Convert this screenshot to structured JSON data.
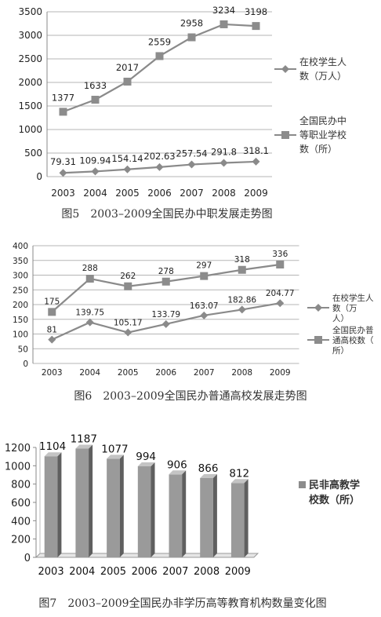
{
  "chart_data": [
    {
      "type": "line",
      "title": "",
      "x": [
        "2003",
        "2004",
        "2005",
        "2006",
        "2007",
        "2008",
        "2009"
      ],
      "ylim": [
        0,
        3500
      ],
      "yticks": [
        0,
        500,
        1000,
        1500,
        2000,
        2500,
        3000,
        3500
      ],
      "grid": true,
      "legend": "right",
      "series": [
        {
          "name": "在校学生人数（万人）",
          "marker": "diamond",
          "values": [
            79.31,
            109.94,
            154.14,
            202.63,
            257.54,
            291.8,
            318.1
          ],
          "labels": [
            "79.31",
            "109.94",
            "154.14",
            "202.63",
            "257.54",
            "291.8",
            "318.1"
          ]
        },
        {
          "name": "全国民办中等职业学校数（所）",
          "marker": "square",
          "values": [
            1377,
            1633,
            2017,
            2559,
            2958,
            3234,
            3198
          ],
          "labels": [
            "1377",
            "1633",
            "2017",
            "2559",
            "2958",
            "3234",
            "3198"
          ]
        }
      ],
      "caption": "图5　2003–2009全国民办中职发展走势图"
    },
    {
      "type": "line",
      "title": "",
      "x": [
        "2003",
        "2004",
        "2005",
        "2006",
        "2007",
        "2008",
        "2009"
      ],
      "ylim": [
        0,
        400
      ],
      "yticks": [
        0,
        50,
        100,
        150,
        200,
        250,
        300,
        350,
        400
      ],
      "grid": true,
      "legend": "right",
      "series": [
        {
          "name": "在校学生人数（万人）",
          "marker": "diamond",
          "values": [
            81,
            139.75,
            105.17,
            133.79,
            163.07,
            182.86,
            204.77
          ],
          "labels": [
            "81",
            "139.75",
            "105.17",
            "133.79",
            "163.07",
            "182.86",
            "204.77"
          ]
        },
        {
          "name": "全国民办普通高校数（所）",
          "marker": "square",
          "values": [
            175,
            288,
            262,
            278,
            297,
            318,
            336
          ],
          "labels": [
            "175",
            "288",
            "262",
            "278",
            "297",
            "318",
            "336"
          ]
        }
      ],
      "caption": "图6　2003–2009全国民办普通高校发展走势图"
    },
    {
      "type": "bar",
      "title": "",
      "categories": [
        "2003",
        "2004",
        "2005",
        "2006",
        "2007",
        "2008",
        "2009"
      ],
      "ylim": [
        0,
        1200
      ],
      "yticks": [
        0,
        200,
        400,
        600,
        800,
        1000,
        1200
      ],
      "grid": false,
      "legend": "right",
      "series": [
        {
          "name": "民非高教学校数（所）",
          "values": [
            1104,
            1187,
            1077,
            994,
            906,
            866,
            812
          ],
          "labels": [
            "1104",
            "1187",
            "1077",
            "994",
            "906",
            "866",
            "812"
          ]
        }
      ],
      "caption": "图7　2003–2009全国民办非学历高等教育机构数量变化图"
    }
  ],
  "colors": {
    "line": "#8a8a8a",
    "grid": "#b5b5b5",
    "bar_front": "#9a9a9a",
    "bar_side": "#5f5f5f",
    "bar_top": "#c4c4c4",
    "legend_square": "#8c8c8c"
  }
}
